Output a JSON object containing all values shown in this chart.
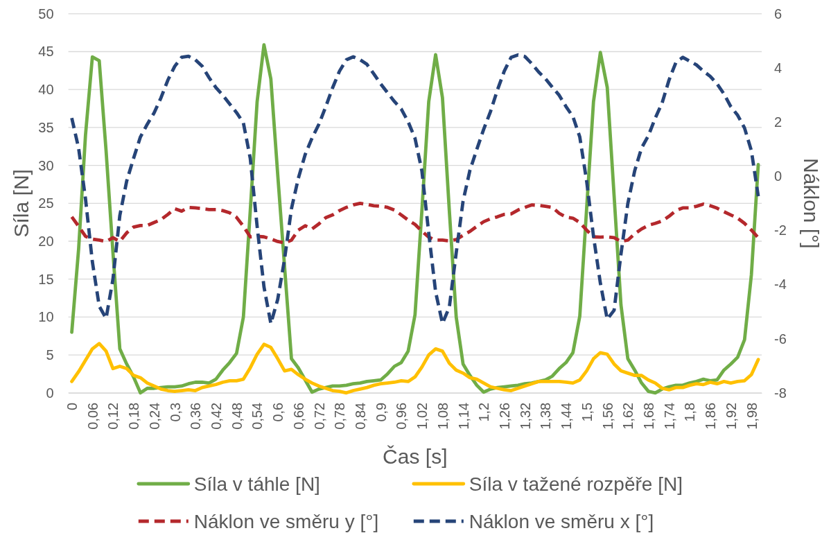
{
  "chart_data": {
    "type": "line",
    "xlabel": "Čas [s]",
    "ylabel": "Síla [N]",
    "y2label": "Náklon [°]",
    "categories": [
      "0",
      null,
      null,
      "0,06",
      null,
      null,
      "0,12",
      null,
      null,
      "0,18",
      null,
      null,
      "0,24",
      null,
      null,
      "0,3",
      null,
      null,
      "0,36",
      null,
      null,
      "0,42",
      null,
      null,
      "0,48",
      null,
      null,
      "0,54",
      null,
      null,
      "0,6",
      null,
      null,
      "0,66",
      null,
      null,
      "0,72",
      null,
      null,
      "0,78",
      null,
      null,
      "0,84",
      null,
      null,
      "0,9",
      null,
      null,
      "0,96",
      null,
      null,
      "1,02",
      null,
      null,
      "1,08",
      null,
      null,
      "1,14",
      null,
      null,
      "1,2",
      null,
      null,
      "1,26",
      null,
      null,
      "1,32",
      null,
      null,
      "1,38",
      null,
      null,
      "1,44",
      null,
      null,
      "1,5",
      null,
      null,
      "1,56",
      null,
      null,
      "1,62",
      null,
      null,
      "1,68",
      null,
      null,
      "1,74",
      null,
      null,
      "1,8",
      null,
      null,
      "1,86",
      null,
      null,
      "1,92",
      null,
      null,
      "1,98",
      null
    ],
    "series": [
      {
        "name": "Síla v táhle [N]",
        "color": "#70ad47",
        "line_style": "solid",
        "values": [
          8.0,
          19,
          34,
          44.3,
          43.8,
          31.9,
          18.5,
          5.8,
          3.8,
          2.1,
          0.0,
          0.6,
          0.6,
          0.7,
          0.8,
          0.8,
          0.9,
          1.2,
          1.4,
          1.4,
          1.3,
          1.8,
          3.0,
          4.0,
          5.2,
          10.0,
          24,
          38.4,
          45.9,
          41.4,
          28.8,
          16.6,
          4.5,
          3.3,
          1.7,
          0.1,
          0.5,
          0.7,
          0.9,
          0.9,
          1.0,
          1.2,
          1.3,
          1.5,
          1.6,
          1.7,
          2.5,
          3.5,
          4.0,
          5.5,
          10.3,
          24,
          38.4,
          44.6,
          38.9,
          24,
          10,
          3.8,
          2.3,
          1.0,
          0.1,
          0.5,
          0.7,
          0.8,
          0.9,
          1.0,
          1.2,
          1.3,
          1.5,
          1.7,
          2.2,
          3.2,
          4.0,
          5.3,
          10.1,
          24.3,
          38.4,
          44.9,
          40.3,
          26,
          11.6,
          4.5,
          3.0,
          1.3,
          0.2,
          0.0,
          0.5,
          0.8,
          1.0,
          1.0,
          1.3,
          1.5,
          1.8,
          1.6,
          1.7,
          3.0,
          3.8,
          4.7,
          7.0,
          15.6,
          30.1
        ]
      },
      {
        "name": "Síla v tažené rozpěře [N]",
        "color": "#ffc000",
        "line_style": "solid",
        "values": [
          1.5,
          2.8,
          4.3,
          5.8,
          6.5,
          5.5,
          3.2,
          3.5,
          3.2,
          2.3,
          2.0,
          1.3,
          0.9,
          0.5,
          0.3,
          0.2,
          0.3,
          0.4,
          0.3,
          0.7,
          0.9,
          1.1,
          1.4,
          1.6,
          1.6,
          1.8,
          3.3,
          5.1,
          6.4,
          6.0,
          4.5,
          2.9,
          3.1,
          2.4,
          1.8,
          1.3,
          0.9,
          0.6,
          0.3,
          0.2,
          0.0,
          0.3,
          0.5,
          0.7,
          1.0,
          1.2,
          1.3,
          1.4,
          1.6,
          1.5,
          2.1,
          3.4,
          5.0,
          5.8,
          5.5,
          3.9,
          3.0,
          2.6,
          2.0,
          1.8,
          1.3,
          0.8,
          0.6,
          0.4,
          0.3,
          0.6,
          0.9,
          1.2,
          1.5,
          1.5,
          1.5,
          1.5,
          1.4,
          1.3,
          1.7,
          2.9,
          4.5,
          5.3,
          5.1,
          3.8,
          2.9,
          2.6,
          2.3,
          2.3,
          1.7,
          1.3,
          0.6,
          0.4,
          0.7,
          0.7,
          1.0,
          1.2,
          1.1,
          1.4,
          1.2,
          1.5,
          1.3,
          1.5,
          1.6,
          2.4,
          4.4
        ]
      },
      {
        "name": "Náklon ve směru y [°]",
        "color": "#b4282c",
        "line_style": "dashed",
        "axis": "y2",
        "values": [
          -1.5,
          -1.85,
          -2.22,
          -2.32,
          -2.36,
          -2.41,
          -2.27,
          -2.41,
          -2.09,
          -1.88,
          -1.82,
          -1.82,
          -1.71,
          -1.6,
          -1.41,
          -1.2,
          -1.29,
          -1.15,
          -1.17,
          -1.2,
          -1.23,
          -1.23,
          -1.27,
          -1.35,
          -1.52,
          -1.85,
          -2.24,
          -2.22,
          -2.24,
          -2.32,
          -2.41,
          -2.46,
          -2.36,
          -1.99,
          -1.83,
          -1.95,
          -1.76,
          -1.53,
          -1.43,
          -1.27,
          -1.15,
          -1.06,
          -1.0,
          -1.04,
          -1.09,
          -1.11,
          -1.15,
          -1.25,
          -1.43,
          -1.62,
          -1.78,
          -2.03,
          -2.25,
          -2.36,
          -2.36,
          -2.39,
          -2.34,
          -2.18,
          -2.04,
          -1.85,
          -1.68,
          -1.57,
          -1.5,
          -1.41,
          -1.39,
          -1.25,
          -1.15,
          -1.06,
          -1.08,
          -1.11,
          -1.15,
          -1.37,
          -1.51,
          -1.55,
          -1.71,
          -1.99,
          -2.24,
          -2.25,
          -2.24,
          -2.27,
          -2.41,
          -2.36,
          -2.13,
          -1.95,
          -1.81,
          -1.74,
          -1.65,
          -1.48,
          -1.27,
          -1.17,
          -1.17,
          -1.11,
          -1.03,
          -1.09,
          -1.18,
          -1.31,
          -1.43,
          -1.55,
          -1.74,
          -1.99,
          -2.27
        ]
      },
      {
        "name": "Náklon ve směru x [°]",
        "color": "#264478",
        "line_style": "dashed",
        "axis": "y2",
        "values": [
          2.15,
          1.03,
          -0.83,
          -3.16,
          -4.8,
          -5.25,
          -3.8,
          -1.45,
          -0.18,
          0.66,
          1.45,
          1.92,
          2.34,
          2.9,
          3.55,
          4.06,
          4.39,
          4.43,
          4.3,
          4.06,
          3.64,
          3.27,
          2.99,
          2.67,
          2.35,
          1.97,
          0.66,
          -1.85,
          -4.09,
          -5.44,
          -4.55,
          -3.06,
          -1.2,
          -0.08,
          0.8,
          1.41,
          1.92,
          2.57,
          3.27,
          3.88,
          4.3,
          4.41,
          4.3,
          4.13,
          3.78,
          3.41,
          3.08,
          2.76,
          2.48,
          2.01,
          1.4,
          0.2,
          -2.1,
          -4.27,
          -5.44,
          -4.83,
          -2.83,
          -0.92,
          0.22,
          0.99,
          1.73,
          2.39,
          3.18,
          3.88,
          4.39,
          4.48,
          4.42,
          4.16,
          3.85,
          3.6,
          3.29,
          2.99,
          2.57,
          2.2,
          1.45,
          -0.18,
          -2.22,
          -3.95,
          -5.28,
          -4.95,
          -2.88,
          -1.01,
          0.2,
          1.04,
          1.5,
          2.15,
          2.71,
          3.55,
          4.2,
          4.39,
          4.25,
          4.11,
          3.88,
          3.69,
          3.41,
          3.04,
          2.57,
          2.25,
          1.78,
          0.94,
          -0.74
        ]
      }
    ],
    "ylim": [
      0,
      50
    ],
    "yticks": [
      0,
      5,
      10,
      15,
      20,
      25,
      30,
      35,
      40,
      45,
      50
    ],
    "y2lim": [
      -8,
      6
    ],
    "y2ticks": [
      -8,
      -6,
      -4,
      -2,
      0,
      2,
      4,
      6
    ],
    "grid": "y",
    "legend": "bottom"
  }
}
